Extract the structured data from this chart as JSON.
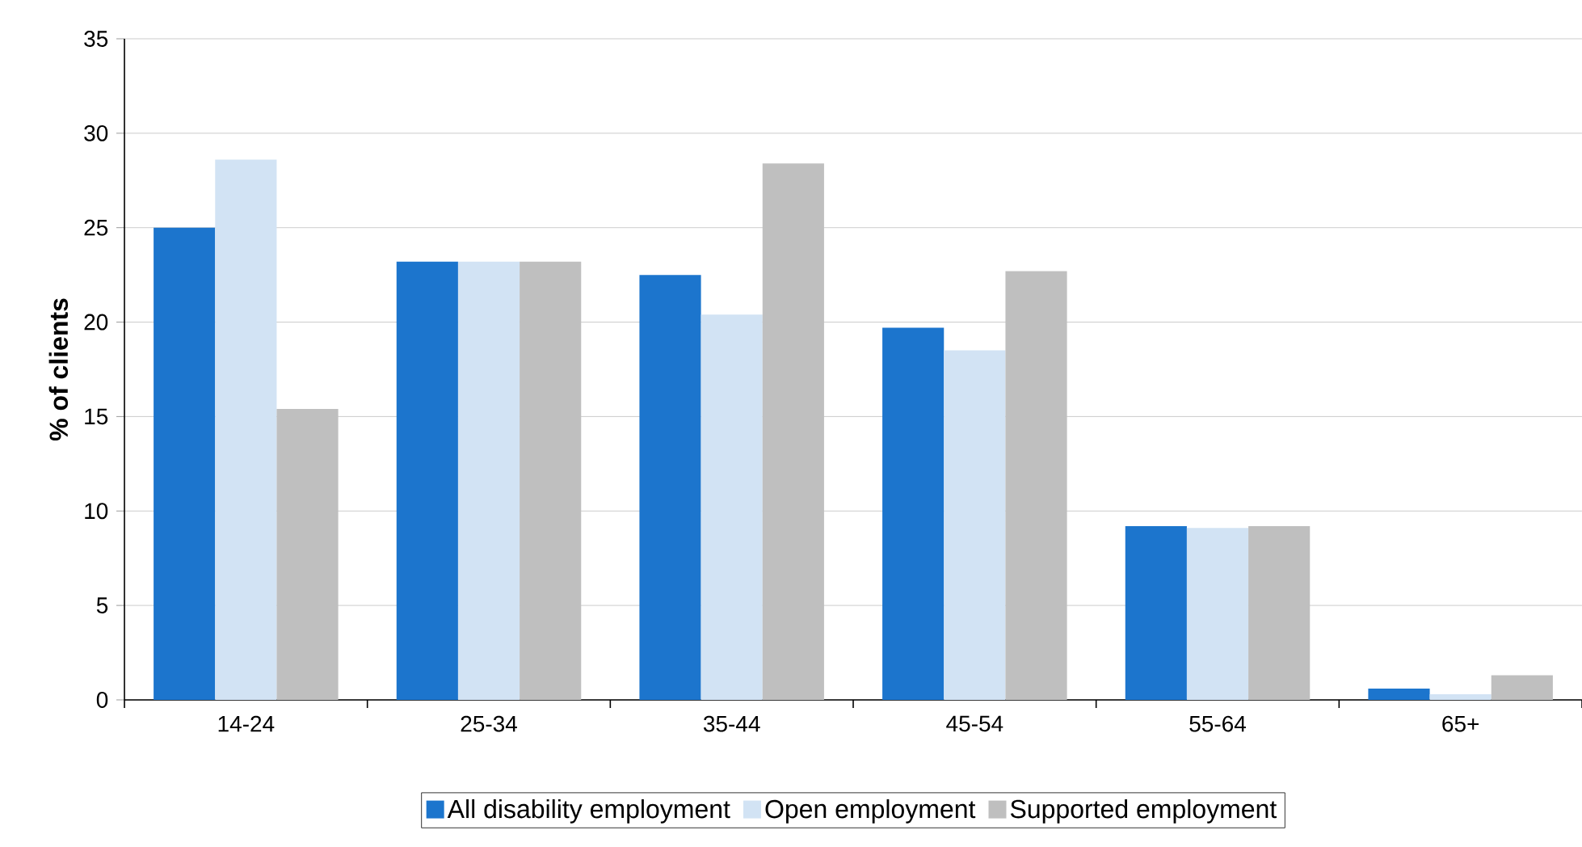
{
  "chart_data": {
    "type": "bar",
    "ylabel": "% of clients",
    "categories": [
      "14-24",
      "25-34",
      "35-44",
      "45-54",
      "55-64",
      "65+"
    ],
    "series": [
      {
        "name": "All disability employment",
        "color": "#1c75cd",
        "values": [
          25.0,
          23.2,
          22.5,
          19.7,
          9.2,
          0.6
        ]
      },
      {
        "name": "Open employment",
        "color": "#d2e3f4",
        "values": [
          28.6,
          23.2,
          20.4,
          18.5,
          9.1,
          0.3
        ]
      },
      {
        "name": "Supported employment",
        "color": "#bfbfbf",
        "values": [
          15.4,
          23.2,
          28.4,
          22.7,
          9.2,
          1.3
        ]
      }
    ],
    "ylim": [
      0,
      35
    ],
    "yticks": [
      0,
      5,
      10,
      15,
      20,
      25,
      30,
      35
    ],
    "grid": "y",
    "legend": "bottom"
  }
}
